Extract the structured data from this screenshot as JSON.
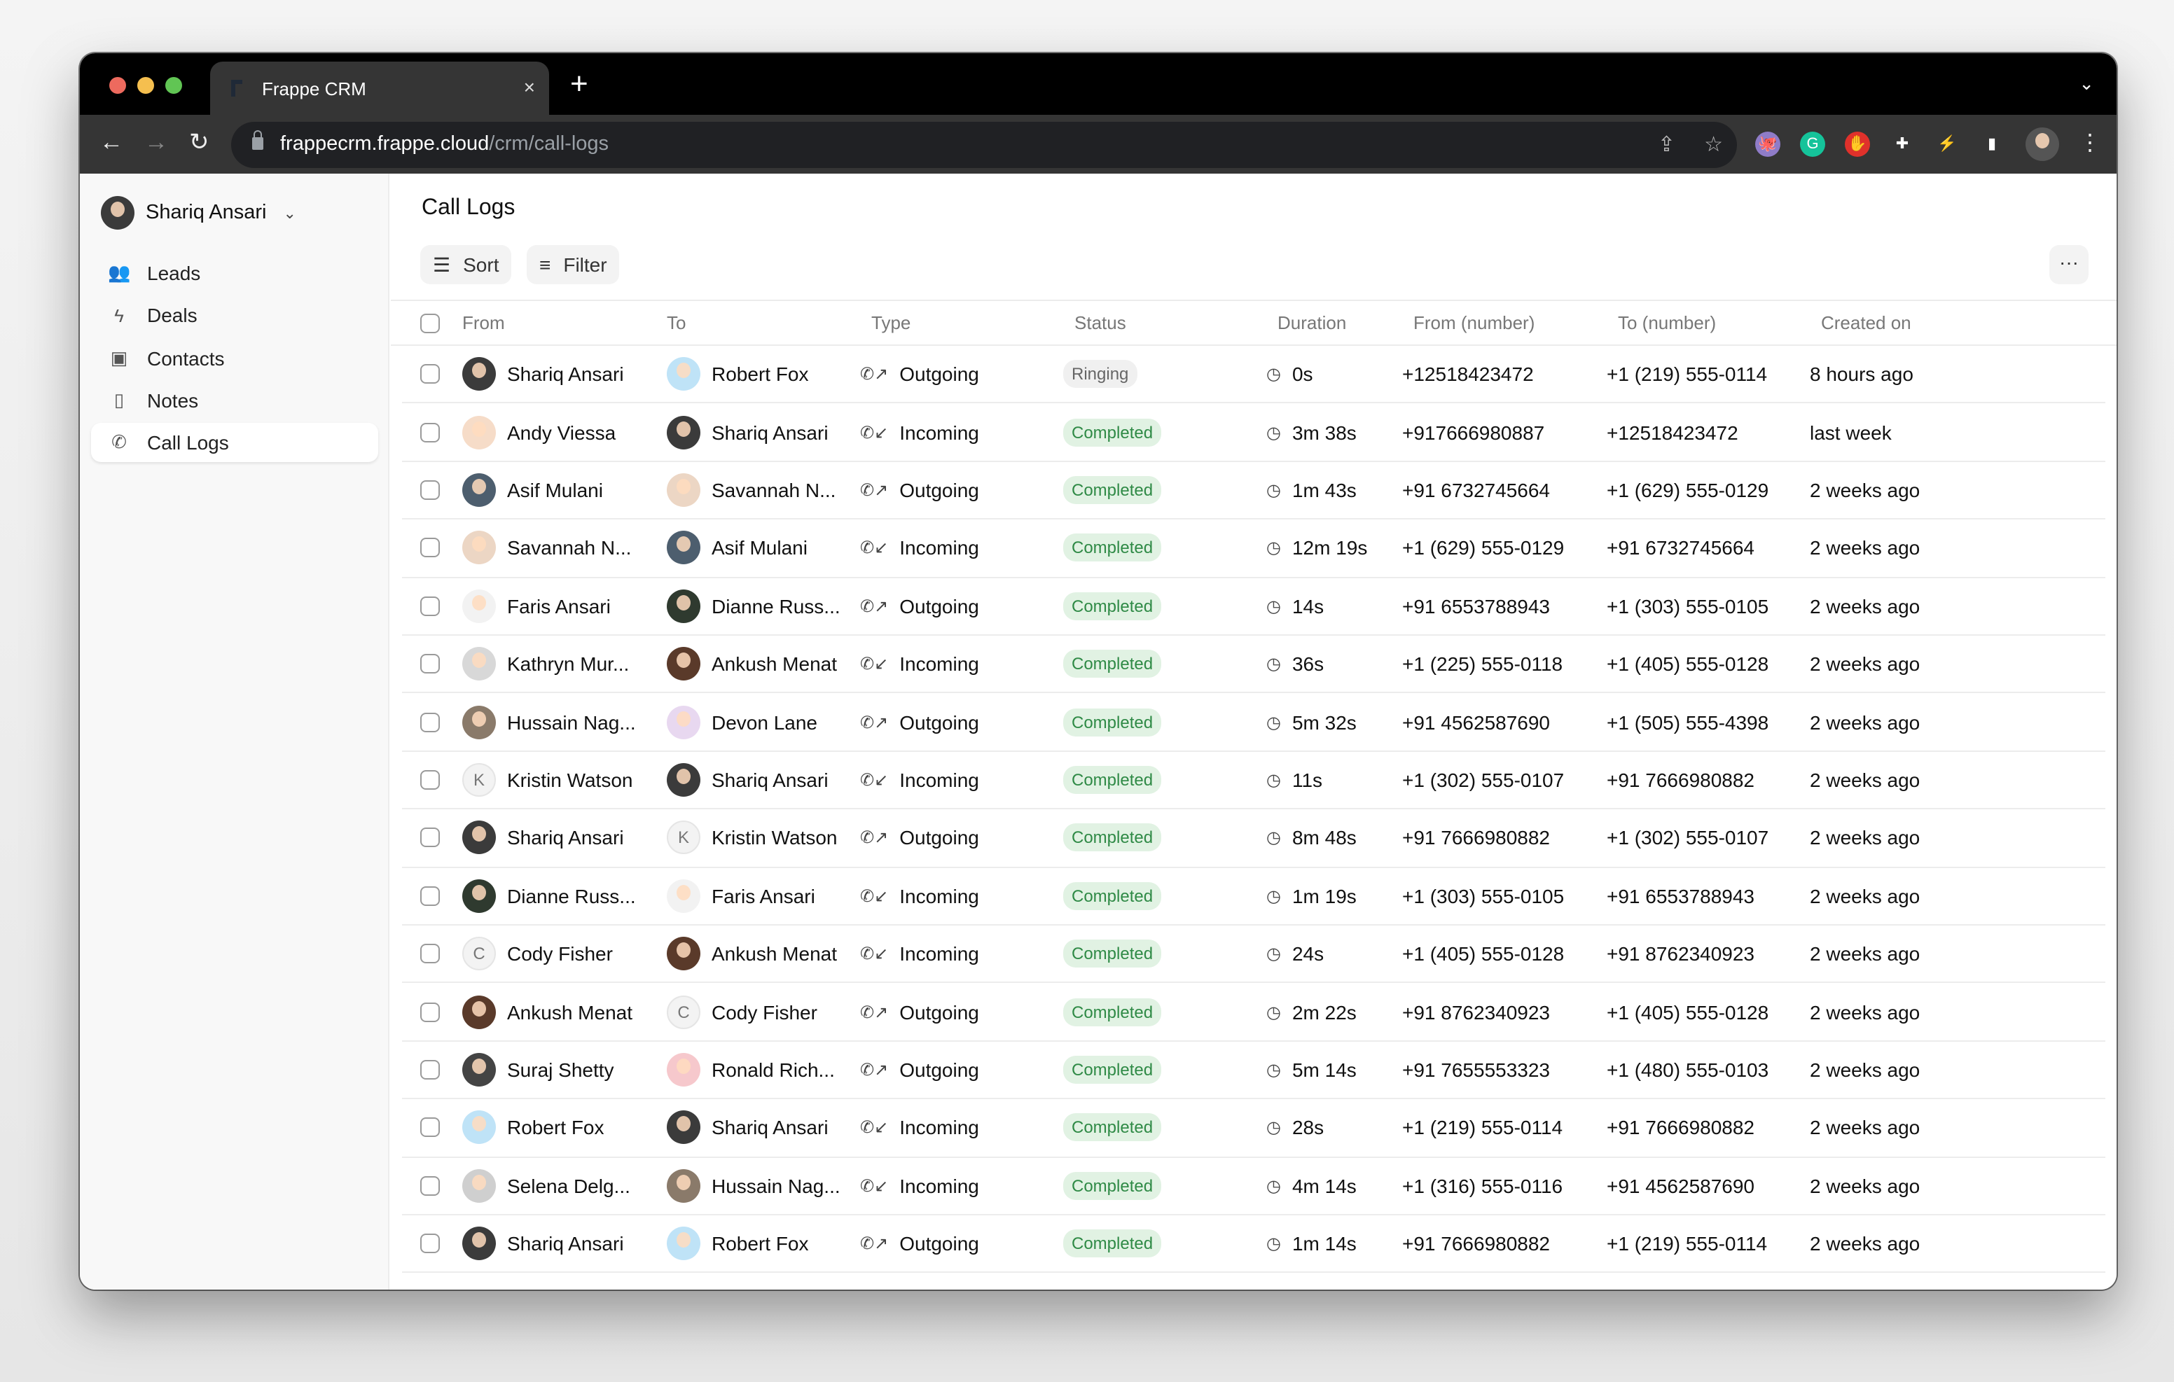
{
  "browser": {
    "tab_title": "Frappe CRM",
    "tab_close": "×",
    "new_tab": "+",
    "url_host": "frappecrm.frappe.cloud",
    "url_path": "/crm/call-logs",
    "traffic_lights": [
      "#ed6a5e",
      "#f5bf4f",
      "#61c554"
    ],
    "extensions": [
      {
        "name": "octocat-extension-icon",
        "color": "#8f7cc8",
        "glyph": "🐙"
      },
      {
        "name": "grammarly-icon",
        "color": "#15c39a",
        "glyph": "G"
      },
      {
        "name": "adblock-icon",
        "color": "#e0312b",
        "glyph": "✋"
      },
      {
        "name": "puzzle-extensions-icon",
        "color": "transparent",
        "glyph": "✚"
      },
      {
        "name": "leaf-bolt-icon",
        "color": "transparent",
        "glyph": "⚡"
      },
      {
        "name": "sidebar-panel-icon",
        "color": "transparent",
        "glyph": "▮"
      }
    ]
  },
  "sidebar": {
    "user": "Shariq Ansari",
    "items": [
      {
        "label": "Leads",
        "icon": "users-icon",
        "glyph": "👥"
      },
      {
        "label": "Deals",
        "icon": "bolt-icon",
        "glyph": "ϟ"
      },
      {
        "label": "Contacts",
        "icon": "contact-card-icon",
        "glyph": "▣"
      },
      {
        "label": "Notes",
        "icon": "note-file-icon",
        "glyph": "▯"
      },
      {
        "label": "Call Logs",
        "icon": "phone-icon",
        "glyph": "✆",
        "active": true
      }
    ]
  },
  "main": {
    "title": "Call Logs",
    "sort_label": "Sort",
    "filter_label": "Filter",
    "more_label": "···",
    "columns": [
      "From",
      "To",
      "Type",
      "Status",
      "Duration",
      "From (number)",
      "To (number)",
      "Created on"
    ]
  },
  "colors": {
    "completed_bg": "#e1f2e3",
    "completed_fg": "#2f8a46",
    "ringing_bg": "#f0f0f0",
    "ringing_fg": "#666"
  },
  "rows": [
    {
      "from": "Shariq Ansari",
      "from_avatar": {
        "kind": "photo",
        "color": "#3b3b3b"
      },
      "to": "Robert Fox",
      "to_avatar": {
        "kind": "photo",
        "color": "#bfe3f7"
      },
      "type": "Outgoing",
      "status": "Ringing",
      "duration": "0s",
      "from_number": "+12518423472",
      "to_number": "+1 (219) 555-0114",
      "created": "8 hours ago"
    },
    {
      "from": "Andy Viessa",
      "from_avatar": {
        "kind": "photo",
        "color": "#f6dcc8"
      },
      "to": "Shariq Ansari",
      "to_avatar": {
        "kind": "photo",
        "color": "#3b3b3b"
      },
      "type": "Incoming",
      "status": "Completed",
      "duration": "3m 38s",
      "from_number": "+917666980887",
      "to_number": "+12518423472",
      "created": "last week"
    },
    {
      "from": "Asif Mulani",
      "from_avatar": {
        "kind": "photo",
        "color": "#4d5e6e"
      },
      "to": "Savannah N...",
      "to_avatar": {
        "kind": "photo",
        "color": "#ecd6c4"
      },
      "type": "Outgoing",
      "status": "Completed",
      "duration": "1m 43s",
      "from_number": "+91 6732745664",
      "to_number": "+1 (629) 555-0129",
      "created": "2 weeks ago"
    },
    {
      "from": "Savannah N...",
      "from_avatar": {
        "kind": "photo",
        "color": "#ecd6c4"
      },
      "to": "Asif Mulani",
      "to_avatar": {
        "kind": "photo",
        "color": "#4d5e6e"
      },
      "type": "Incoming",
      "status": "Completed",
      "duration": "12m 19s",
      "from_number": "+1 (629) 555-0129",
      "to_number": "+91 6732745664",
      "created": "2 weeks ago"
    },
    {
      "from": "Faris Ansari",
      "from_avatar": {
        "kind": "photo",
        "color": "#f2f2f2"
      },
      "to": "Dianne Russ...",
      "to_avatar": {
        "kind": "photo",
        "color": "#2f3a2f"
      },
      "type": "Outgoing",
      "status": "Completed",
      "duration": "14s",
      "from_number": "+91 6553788943",
      "to_number": "+1 (303) 555-0105",
      "created": "2 weeks ago"
    },
    {
      "from": "Kathryn Mur...",
      "from_avatar": {
        "kind": "photo",
        "color": "#d8d8d8"
      },
      "to": "Ankush Menat",
      "to_avatar": {
        "kind": "photo",
        "color": "#5a3a2a"
      },
      "type": "Incoming",
      "status": "Completed",
      "duration": "36s",
      "from_number": "+1 (225) 555-0118",
      "to_number": "+1 (405) 555-0128",
      "created": "2 weeks ago"
    },
    {
      "from": "Hussain Nag...",
      "from_avatar": {
        "kind": "photo",
        "color": "#8a7a6a"
      },
      "to": "Devon Lane",
      "to_avatar": {
        "kind": "photo",
        "color": "#e8d8f0"
      },
      "type": "Outgoing",
      "status": "Completed",
      "duration": "5m 32s",
      "from_number": "+91 4562587690",
      "to_number": "+1 (505) 555-4398",
      "created": "2 weeks ago"
    },
    {
      "from": "Kristin Watson",
      "from_avatar": {
        "kind": "letter",
        "letter": "K"
      },
      "to": "Shariq Ansari",
      "to_avatar": {
        "kind": "photo",
        "color": "#3b3b3b"
      },
      "type": "Incoming",
      "status": "Completed",
      "duration": "11s",
      "from_number": "+1 (302) 555-0107",
      "to_number": "+91 7666980882",
      "created": "2 weeks ago"
    },
    {
      "from": "Shariq Ansari",
      "from_avatar": {
        "kind": "photo",
        "color": "#3b3b3b"
      },
      "to": "Kristin Watson",
      "to_avatar": {
        "kind": "letter",
        "letter": "K"
      },
      "type": "Outgoing",
      "status": "Completed",
      "duration": "8m 48s",
      "from_number": "+91 7666980882",
      "to_number": "+1 (302) 555-0107",
      "created": "2 weeks ago"
    },
    {
      "from": "Dianne Russ...",
      "from_avatar": {
        "kind": "photo",
        "color": "#2f3a2f"
      },
      "to": "Faris Ansari",
      "to_avatar": {
        "kind": "photo",
        "color": "#f2f2f2"
      },
      "type": "Incoming",
      "status": "Completed",
      "duration": "1m 19s",
      "from_number": "+1 (303) 555-0105",
      "to_number": "+91 6553788943",
      "created": "2 weeks ago"
    },
    {
      "from": "Cody Fisher",
      "from_avatar": {
        "kind": "letter",
        "letter": "C"
      },
      "to": "Ankush Menat",
      "to_avatar": {
        "kind": "photo",
        "color": "#5a3a2a"
      },
      "type": "Incoming",
      "status": "Completed",
      "duration": "24s",
      "from_number": "+1 (405) 555-0128",
      "to_number": "+91 8762340923",
      "created": "2 weeks ago"
    },
    {
      "from": "Ankush Menat",
      "from_avatar": {
        "kind": "photo",
        "color": "#5a3a2a"
      },
      "to": "Cody Fisher",
      "to_avatar": {
        "kind": "letter",
        "letter": "C"
      },
      "type": "Outgoing",
      "status": "Completed",
      "duration": "2m 22s",
      "from_number": "+91 8762340923",
      "to_number": "+1 (405) 555-0128",
      "created": "2 weeks ago"
    },
    {
      "from": "Suraj Shetty",
      "from_avatar": {
        "kind": "photo",
        "color": "#444"
      },
      "to": "Ronald Rich...",
      "to_avatar": {
        "kind": "photo",
        "color": "#f6c8cc"
      },
      "type": "Outgoing",
      "status": "Completed",
      "duration": "5m 14s",
      "from_number": "+91 7655553323",
      "to_number": "+1 (480) 555-0103",
      "created": "2 weeks ago"
    },
    {
      "from": "Robert Fox",
      "from_avatar": {
        "kind": "photo",
        "color": "#bfe3f7"
      },
      "to": "Shariq Ansari",
      "to_avatar": {
        "kind": "photo",
        "color": "#3b3b3b"
      },
      "type": "Incoming",
      "status": "Completed",
      "duration": "28s",
      "from_number": "+1 (219) 555-0114",
      "to_number": "+91 7666980882",
      "created": "2 weeks ago"
    },
    {
      "from": "Selena Delg...",
      "from_avatar": {
        "kind": "photo",
        "color": "#cfcfcf"
      },
      "to": "Hussain Nag...",
      "to_avatar": {
        "kind": "photo",
        "color": "#8a7a6a"
      },
      "type": "Incoming",
      "status": "Completed",
      "duration": "4m 14s",
      "from_number": "+1 (316) 555-0116",
      "to_number": "+91 4562587690",
      "created": "2 weeks ago"
    },
    {
      "from": "Shariq Ansari",
      "from_avatar": {
        "kind": "photo",
        "color": "#3b3b3b"
      },
      "to": "Robert Fox",
      "to_avatar": {
        "kind": "photo",
        "color": "#bfe3f7"
      },
      "type": "Outgoing",
      "status": "Completed",
      "duration": "1m 14s",
      "from_number": "+91 7666980882",
      "to_number": "+1 (219) 555-0114",
      "created": "2 weeks ago"
    }
  ]
}
